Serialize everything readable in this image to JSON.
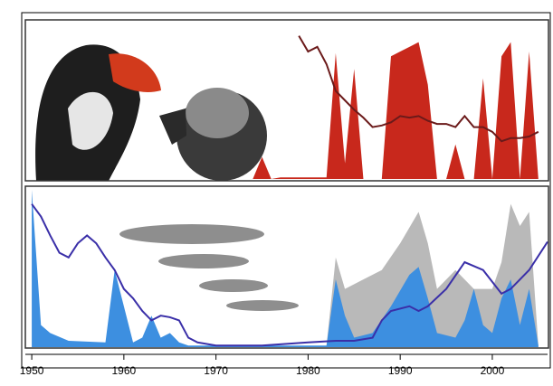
{
  "chart_data": [
    {
      "type": "line",
      "xlim": [
        1949.5,
        2006
      ],
      "ylim": [
        0,
        100
      ],
      "series": [
        {
          "kind": "area",
          "color": "#c8281c",
          "x": [
            1974,
            1975,
            1976,
            1977,
            1982,
            1983,
            1984,
            1985,
            1986,
            1988,
            1989,
            1990,
            1991,
            1992,
            1993,
            1994,
            1995,
            1996,
            1997,
            1998,
            1999,
            2000,
            2001,
            2002,
            2003,
            2004,
            2005
          ],
          "values": [
            0,
            14,
            0,
            1,
            1,
            80,
            10,
            70,
            0,
            0,
            78,
            81,
            84,
            87,
            60,
            0,
            0,
            22,
            0,
            0,
            64,
            0,
            78,
            87,
            0,
            81,
            0
          ]
        },
        {
          "kind": "line",
          "color": "#6b1a1a",
          "x": [
            1979,
            1980,
            1981,
            1982,
            1983,
            1984,
            1985,
            1986,
            1987,
            1988,
            1989,
            1990,
            1991,
            1992,
            1993,
            1994,
            1995,
            1996,
            1997,
            1998,
            1999,
            2000,
            2001,
            2002,
            2003,
            2004,
            2005
          ],
          "values": [
            91,
            81,
            84,
            73,
            56,
            50,
            44,
            39,
            33,
            34,
            36,
            40,
            39,
            40,
            37,
            35,
            35,
            33,
            40,
            33,
            33,
            30,
            24,
            26,
            26,
            27,
            30
          ]
        }
      ]
    },
    {
      "type": "line",
      "xlim": [
        1949.5,
        2006
      ],
      "ylim": [
        0,
        100
      ],
      "xticks": [
        1950,
        1960,
        1970,
        1980,
        1990,
        2000
      ],
      "series": [
        {
          "kind": "area",
          "color": "#b9b9b9",
          "x": [
            1982,
            1983,
            1984,
            1986,
            1988,
            1990,
            1992,
            1993,
            1994,
            1996,
            1998,
            2000,
            2001,
            2002,
            2003,
            2004,
            2005
          ],
          "values": [
            1,
            57,
            37,
            43,
            49,
            66,
            86,
            66,
            37,
            49,
            37,
            37,
            54,
            91,
            77,
            86,
            1
          ]
        },
        {
          "kind": "area",
          "color": "#3d8fe0",
          "x": [
            1950,
            1951,
            1952,
            1954,
            1958,
            1959,
            1960,
            1961,
            1962,
            1963,
            1964,
            1965,
            1966,
            1967,
            1982,
            1983,
            1984,
            1985,
            1987,
            1989,
            1991,
            1992,
            1993,
            1994,
            1996,
            1997,
            1998,
            1999,
            2000,
            2001,
            2002,
            2003,
            2004,
            2005
          ],
          "values": [
            100,
            14,
            9,
            4,
            3,
            49,
            26,
            3,
            6,
            20,
            6,
            9,
            3,
            1,
            1,
            43,
            20,
            6,
            9,
            26,
            46,
            51,
            31,
            9,
            6,
            17,
            37,
            14,
            9,
            31,
            43,
            14,
            37,
            1
          ]
        },
        {
          "kind": "line",
          "color": "#3a2fa8",
          "x": [
            1950,
            1951,
            1952,
            1953,
            1954,
            1955,
            1956,
            1957,
            1958,
            1959,
            1960,
            1961,
            1962,
            1963,
            1964,
            1965,
            1966,
            1967,
            1968,
            1970,
            1975,
            1980,
            1983,
            1985,
            1987,
            1988,
            1989,
            1991,
            1992,
            1993,
            1995,
            1997,
            1999,
            2001,
            2002,
            2004,
            2006
          ],
          "values": [
            91,
            83,
            71,
            60,
            57,
            66,
            71,
            66,
            57,
            49,
            37,
            31,
            23,
            17,
            20,
            19,
            17,
            6,
            3,
            1,
            1,
            3,
            4,
            4,
            6,
            17,
            23,
            26,
            23,
            26,
            37,
            54,
            49,
            34,
            37,
            49,
            67
          ]
        }
      ]
    }
  ]
}
